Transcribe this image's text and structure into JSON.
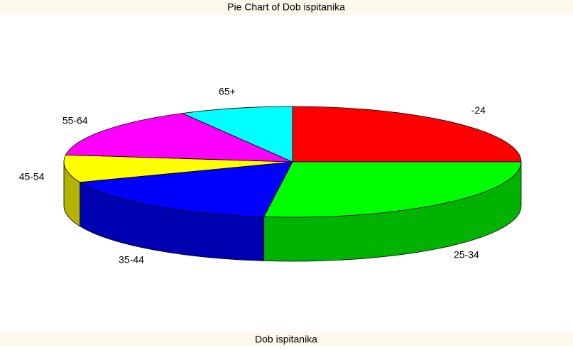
{
  "chart_data": {
    "type": "pie",
    "title": "Pie Chart of Dob ispitanika",
    "xlabel": "Dob ispitanika",
    "categories": [
      "-24",
      "25-34",
      "35-44",
      "45-54",
      "55-64",
      "65+"
    ],
    "values": [
      25,
      27,
      17,
      8,
      15,
      8
    ],
    "colors": [
      "#ff0000",
      "#00ff00",
      "#0000ff",
      "#ffff00",
      "#ff00ff",
      "#00ffff"
    ]
  }
}
